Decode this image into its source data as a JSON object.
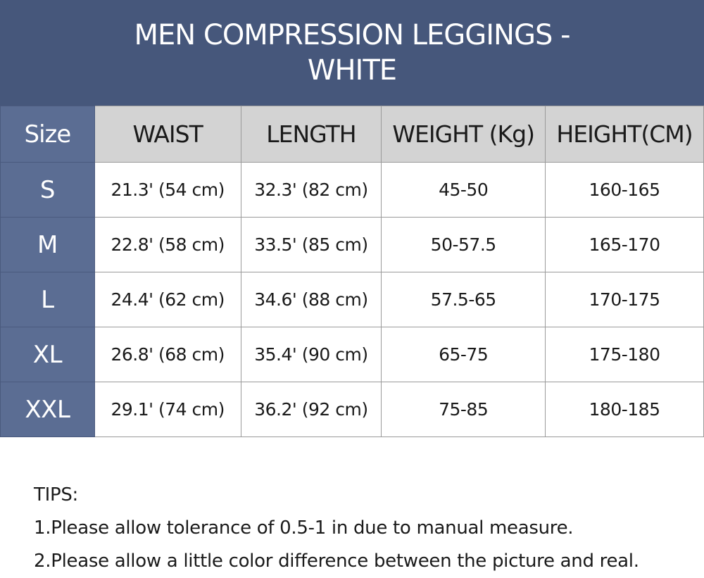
{
  "title": {
    "line1": "MEN COMPRESSION LEGGINGS -",
    "line2": "WHITE"
  },
  "table": {
    "headers": [
      "Size",
      "WAIST",
      "LENGTH",
      "WEIGHT (Kg)",
      "HEIGHT(CM)"
    ],
    "rows": [
      [
        "S",
        "21.3' (54 cm)",
        "32.3' (82 cm)",
        "45-50",
        "160-165"
      ],
      [
        "M",
        "22.8' (58 cm)",
        "33.5' (85 cm)",
        "50-57.5",
        "165-170"
      ],
      [
        "L",
        "24.4' (62 cm)",
        "34.6' (88 cm)",
        "57.5-65",
        "170-175"
      ],
      [
        "XL",
        "26.8' (68 cm)",
        "35.4' (90 cm)",
        "65-75",
        "175-180"
      ],
      [
        "XXL",
        "29.1' (74 cm)",
        "36.2' (92 cm)",
        "75-85",
        "180-185"
      ]
    ]
  },
  "tips": {
    "heading": "TIPS:",
    "items": [
      "1.Please allow tolerance of 0.5-1 in due to manual measure.",
      "2.Please allow a little color difference between the picture and real."
    ]
  }
}
